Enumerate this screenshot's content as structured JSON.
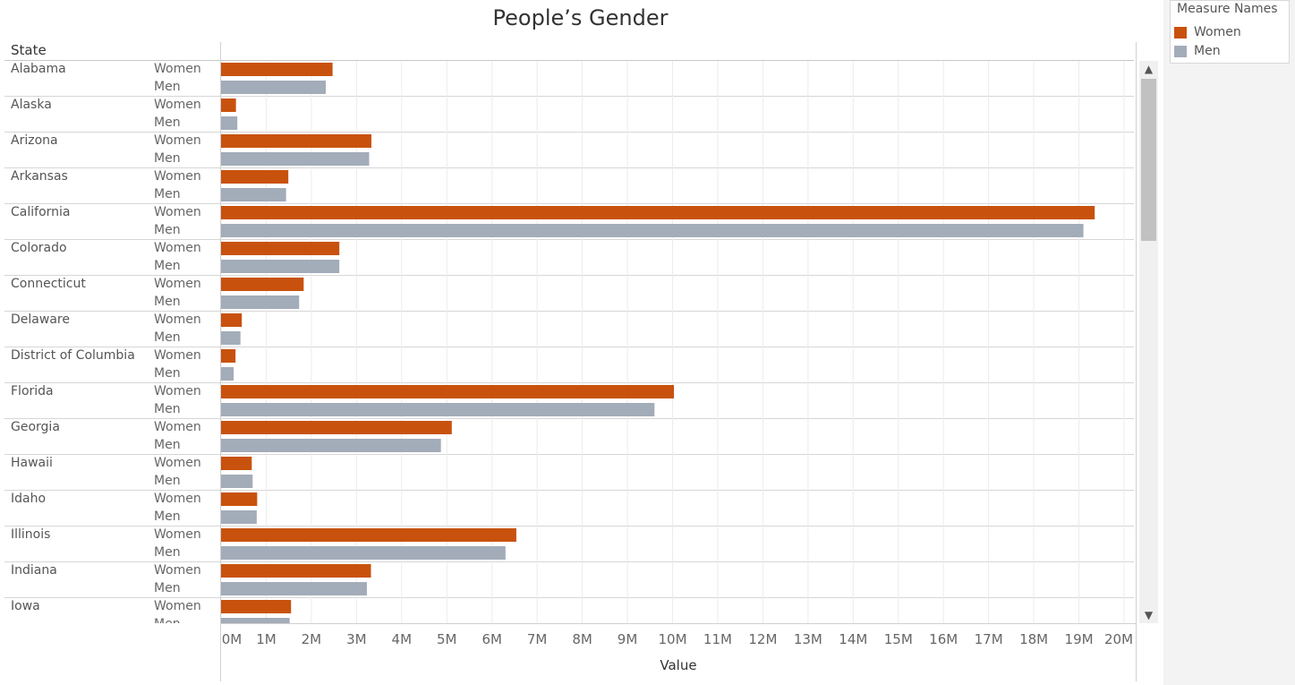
{
  "title": "People’s Gender",
  "row_header": "State",
  "legend": {
    "title": "Measure Names",
    "items": [
      {
        "label": "Women",
        "color": "#c8520d"
      },
      {
        "label": "Men",
        "color": "#a3acb9"
      }
    ]
  },
  "scrollbar": {
    "up_icon": "▲",
    "down_icon": "▼"
  },
  "chart_data": {
    "type": "bar",
    "orientation": "horizontal",
    "title": "People’s Gender",
    "xlabel": "Value",
    "xlim": [
      0,
      20000000
    ],
    "x_ticks": [
      "0M",
      "1M",
      "2M",
      "3M",
      "4M",
      "5M",
      "6M",
      "7M",
      "8M",
      "9M",
      "10M",
      "11M",
      "12M",
      "13M",
      "14M",
      "15M",
      "16M",
      "17M",
      "18M",
      "19M",
      "20M"
    ],
    "grid": true,
    "legend_position": "top-right",
    "categories": [
      "Alabama",
      "Alaska",
      "Arizona",
      "Arkansas",
      "California",
      "Colorado",
      "Connecticut",
      "Delaware",
      "District of Columbia",
      "Florida",
      "Georgia",
      "Hawaii",
      "Idaho",
      "Illinois",
      "Indiana",
      "Iowa"
    ],
    "series": [
      {
        "name": "Women",
        "color": "#c8520d",
        "values": [
          2470000,
          330000,
          3330000,
          1490000,
          19350000,
          2620000,
          1830000,
          460000,
          320000,
          10030000,
          5110000,
          680000,
          800000,
          6540000,
          3320000,
          1550000
        ]
      },
      {
        "name": "Men",
        "color": "#a3acb9",
        "values": [
          2320000,
          360000,
          3280000,
          1440000,
          19100000,
          2620000,
          1730000,
          430000,
          280000,
          9600000,
          4870000,
          700000,
          790000,
          6300000,
          3230000,
          1520000
        ]
      }
    ]
  }
}
